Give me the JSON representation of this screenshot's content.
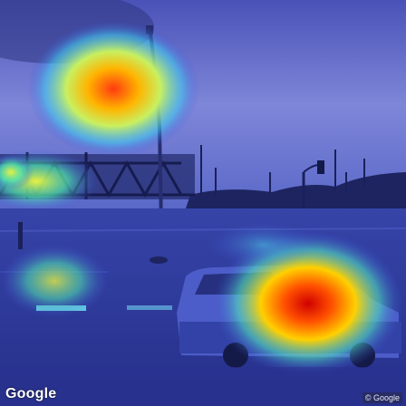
{
  "image": {
    "description_icons": [
      "heatmap-overlay",
      "street-photo"
    ],
    "colors": {
      "sky": "#6f7fd6",
      "ground": "#2c3a9a",
      "heat_hot": "#ff2a00",
      "heat_warm": "#ffd400",
      "heat_mid": "#3cf0b0"
    }
  },
  "watermarks": {
    "left": "Google",
    "right": "© Google"
  }
}
